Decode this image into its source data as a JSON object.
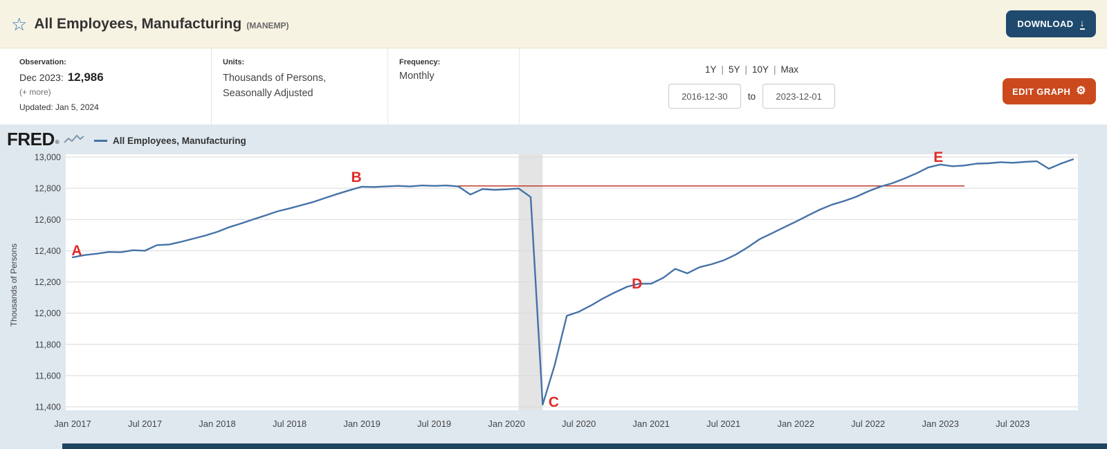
{
  "icons": {
    "star": "☆",
    "download": "↓",
    "gear": "⚙"
  },
  "colors": {
    "header_background": "#f7f3e3",
    "download_button": "#1f4a6e",
    "edit_button": "#cb4a1d",
    "chart_background": "#dfe8ef",
    "series_line": "#4572a7",
    "reference_line": "#c0392b",
    "annotation_red": "#e02b27",
    "star_blue": "#3173b5"
  },
  "header": {
    "title": "All Employees, Manufacturing",
    "series_id": "(MANEMP)",
    "download_label": "DOWNLOAD"
  },
  "info": {
    "observation": {
      "label": "Observation:",
      "date": "Dec 2023:",
      "value": "12,986",
      "more": "(+ more)",
      "updated": "Updated: Jan 5, 2024"
    },
    "units": {
      "label": "Units:",
      "line1": "Thousands of Persons,",
      "line2": "Seasonally Adjusted"
    },
    "frequency": {
      "label": "Frequency:",
      "value": "Monthly"
    },
    "range": {
      "presets": [
        "1Y",
        "5Y",
        "10Y",
        "Max"
      ],
      "separator": "|",
      "start": "2016-12-30",
      "to_label": "to",
      "end": "2023-12-01"
    },
    "edit_graph_label": "EDIT GRAPH"
  },
  "chart": {
    "brand": "FRED",
    "brand_mark": "®",
    "legend": "All Employees, Manufacturing",
    "ylabel": "Thousands of Persons"
  },
  "chart_data": {
    "type": "line",
    "title": "All Employees, Manufacturing (MANEMP)",
    "xlabel": "",
    "ylabel": "Thousands of Persons",
    "frequency": "monthly",
    "x_start": "2017-01",
    "x_end": "2023-12",
    "ylim": [
      11400,
      13000
    ],
    "grid": true,
    "y_ticks": [
      11400,
      11600,
      11800,
      12000,
      12200,
      12400,
      12600,
      12800,
      13000
    ],
    "x_tick_labels": [
      "Jan 2017",
      "Jul 2017",
      "Jan 2018",
      "Jul 2018",
      "Jan 2019",
      "Jul 2019",
      "Jan 2020",
      "Jul 2020",
      "Jan 2021",
      "Jul 2021",
      "Jan 2022",
      "Jul 2022",
      "Jan 2023",
      "Jul 2023"
    ],
    "series": [
      {
        "name": "All Employees, Manufacturing",
        "color": "#4572a7",
        "values": [
          12358,
          12372,
          12381,
          12392,
          12390,
          12403,
          12400,
          12436,
          12440,
          12457,
          12477,
          12497,
          12521,
          12551,
          12575,
          12601,
          12626,
          12652,
          12671,
          12692,
          12713,
          12739,
          12764,
          12788,
          12810,
          12808,
          12812,
          12815,
          12812,
          12818,
          12815,
          12818,
          12812,
          12760,
          12795,
          12790,
          12793,
          12799,
          12744,
          11414,
          11669,
          11983,
          12009,
          12049,
          12094,
          12133,
          12169,
          12188,
          12189,
          12226,
          12284,
          12255,
          12294,
          12313,
          12338,
          12374,
          12421,
          12474,
          12511,
          12549,
          12586,
          12625,
          12663,
          12695,
          12718,
          12745,
          12780,
          12810,
          12832,
          12862,
          12895,
          12934,
          12952,
          12941,
          12946,
          12958,
          12960,
          12967,
          12963,
          12969,
          12973,
          12925,
          12958,
          12986
        ]
      }
    ],
    "recession_band": {
      "from": "2020-02",
      "to": "2020-04",
      "color": "#e4e4e4"
    },
    "reference_line": {
      "value": 12815,
      "from": "2019-09",
      "to": "2023-03",
      "color": "#c0392b"
    },
    "annotation_color": "#e02b27",
    "annotations": [
      {
        "label": "A",
        "month": "2017-01",
        "value": 12358
      },
      {
        "label": "B",
        "month": "2019-01",
        "value": 12810
      },
      {
        "label": "C",
        "month": "2020-04",
        "value": 11414
      },
      {
        "label": "D",
        "month": "2020-12",
        "value": 12188
      },
      {
        "label": "E",
        "month": "2023-01",
        "value": 12952
      }
    ]
  }
}
